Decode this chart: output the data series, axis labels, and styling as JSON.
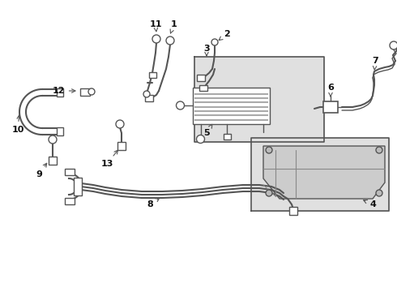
{
  "bg_color": "#ffffff",
  "line_color": "#555555",
  "label_color": "#111111",
  "box_fill": "#e0e0e0",
  "figsize": [
    4.9,
    3.6
  ],
  "dpi": 100
}
